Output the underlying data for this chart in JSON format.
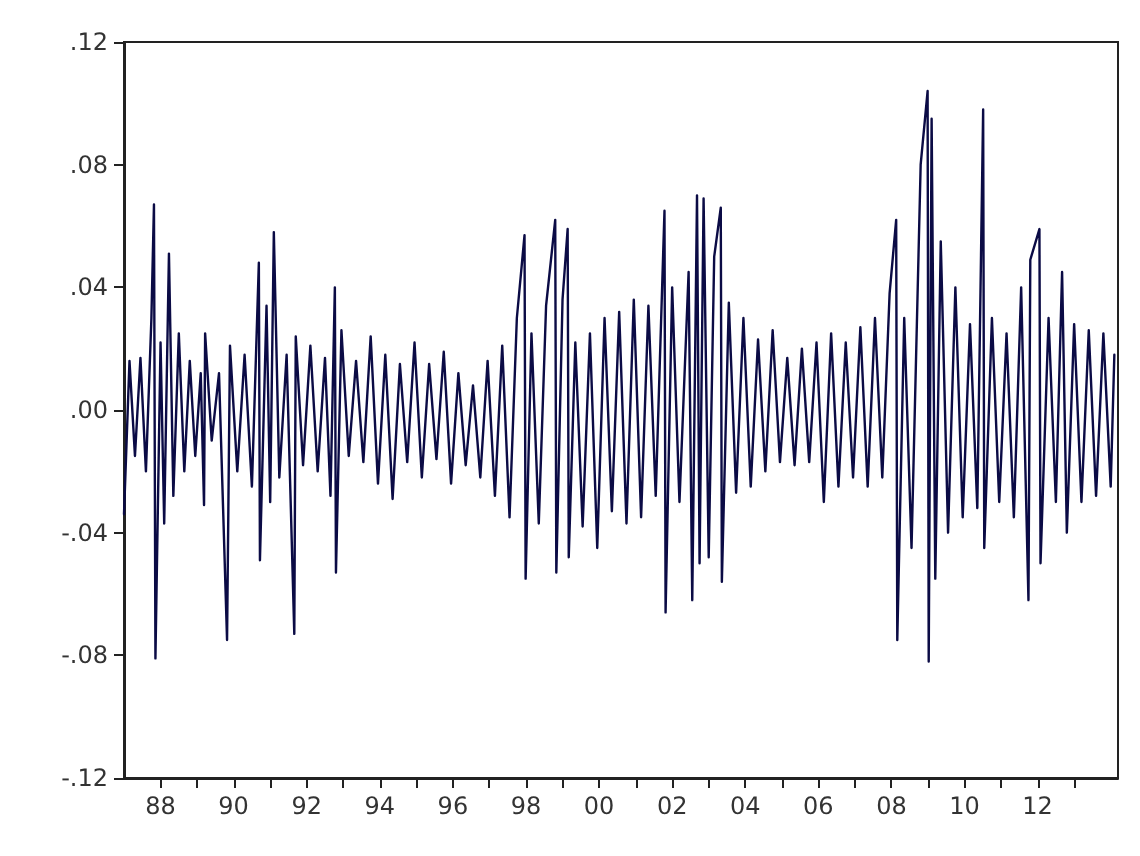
{
  "chart_data": {
    "type": "line",
    "color": "#0b0b45",
    "marker": "none",
    "line_style": "solid",
    "xlim": [
      1987,
      2014.2
    ],
    "xticks": [
      {
        "value": 1988,
        "label": "88"
      },
      {
        "value": 1989,
        "label": null
      },
      {
        "value": 1990,
        "label": "90"
      },
      {
        "value": 1991,
        "label": null
      },
      {
        "value": 1992,
        "label": "92"
      },
      {
        "value": 1993,
        "label": null
      },
      {
        "value": 1994,
        "label": "94"
      },
      {
        "value": 1995,
        "label": null
      },
      {
        "value": 1996,
        "label": "96"
      },
      {
        "value": 1997,
        "label": null
      },
      {
        "value": 1998,
        "label": "98"
      },
      {
        "value": 1999,
        "label": null
      },
      {
        "value": 2000,
        "label": "00"
      },
      {
        "value": 2001,
        "label": null
      },
      {
        "value": 2002,
        "label": "02"
      },
      {
        "value": 2003,
        "label": null
      },
      {
        "value": 2004,
        "label": "04"
      },
      {
        "value": 2005,
        "label": null
      },
      {
        "value": 2006,
        "label": "06"
      },
      {
        "value": 2007,
        "label": null
      },
      {
        "value": 2008,
        "label": "08"
      },
      {
        "value": 2009,
        "label": null
      },
      {
        "value": 2010,
        "label": "10"
      },
      {
        "value": 2011,
        "label": null
      },
      {
        "value": 2012,
        "label": "12"
      },
      {
        "value": 2013,
        "label": null
      }
    ],
    "ylim": [
      -0.12,
      0.12
    ],
    "yticks": [
      {
        "value": -0.12,
        "label": "-.12"
      },
      {
        "value": -0.08,
        "label": "-.08"
      },
      {
        "value": -0.04,
        "label": "-.04"
      },
      {
        "value": 0,
        "label": ".00"
      },
      {
        "value": 0.04,
        "label": ".04"
      },
      {
        "value": 0.08,
        "label": ".08"
      },
      {
        "value": 0.12,
        "label": ".12"
      }
    ],
    "x": [
      1987.0,
      1987.15,
      1987.3,
      1987.45,
      1987.6,
      1987.75,
      1987.82,
      1987.86,
      1988.0,
      1988.1,
      1988.23,
      1988.35,
      1988.5,
      1988.65,
      1988.8,
      1988.95,
      1989.1,
      1989.19,
      1989.22,
      1989.4,
      1989.6,
      1989.82,
      1989.9,
      1990.1,
      1990.3,
      1990.5,
      1990.69,
      1990.72,
      1990.9,
      1991.0,
      1991.1,
      1991.25,
      1991.45,
      1991.66,
      1991.7,
      1991.9,
      1992.1,
      1992.3,
      1992.5,
      1992.65,
      1992.77,
      1992.8,
      1992.95,
      1993.15,
      1993.35,
      1993.55,
      1993.75,
      1993.95,
      1994.15,
      1994.35,
      1994.55,
      1994.75,
      1994.95,
      1995.15,
      1995.35,
      1995.55,
      1995.75,
      1995.95,
      1996.15,
      1996.35,
      1996.55,
      1996.75,
      1996.95,
      1997.15,
      1997.35,
      1997.55,
      1997.75,
      1997.96,
      1997.99,
      1998.15,
      1998.35,
      1998.55,
      1998.8,
      1998.83,
      1999.0,
      1999.14,
      1999.17,
      1999.35,
      1999.55,
      1999.75,
      1999.95,
      2000.15,
      2000.35,
      2000.55,
      2000.75,
      2000.95,
      2001.15,
      2001.35,
      2001.55,
      2001.79,
      2001.82,
      2002.0,
      2002.2,
      2002.45,
      2002.55,
      2002.68,
      2002.75,
      2002.86,
      2003.0,
      2003.15,
      2003.33,
      2003.36,
      2003.55,
      2003.75,
      2003.95,
      2004.15,
      2004.35,
      2004.55,
      2004.75,
      2004.95,
      2005.15,
      2005.35,
      2005.55,
      2005.75,
      2005.95,
      2006.15,
      2006.35,
      2006.55,
      2006.75,
      2006.95,
      2007.15,
      2007.35,
      2007.55,
      2007.75,
      2007.95,
      2008.13,
      2008.16,
      2008.35,
      2008.55,
      2008.8,
      2008.99,
      2009.02,
      2009.1,
      2009.2,
      2009.35,
      2009.55,
      2009.75,
      2009.95,
      2010.15,
      2010.35,
      2010.51,
      2010.54,
      2010.75,
      2010.95,
      2011.15,
      2011.35,
      2011.55,
      2011.75,
      2011.8,
      2012.05,
      2012.08,
      2012.3,
      2012.5,
      2012.67,
      2012.8,
      2013.0,
      2013.2,
      2013.4,
      2013.6,
      2013.8,
      2014.0,
      2014.1
    ],
    "values": [
      -0.034,
      0.016,
      -0.015,
      0.017,
      -0.02,
      0.03,
      0.067,
      -0.081,
      0.022,
      -0.037,
      0.051,
      -0.028,
      0.025,
      -0.02,
      0.016,
      -0.015,
      0.012,
      -0.031,
      0.025,
      -0.01,
      0.012,
      -0.075,
      0.021,
      -0.02,
      0.018,
      -0.025,
      0.048,
      -0.049,
      0.034,
      -0.03,
      0.058,
      -0.022,
      0.018,
      -0.073,
      0.024,
      -0.018,
      0.021,
      -0.02,
      0.017,
      -0.028,
      0.04,
      -0.053,
      0.026,
      -0.015,
      0.016,
      -0.017,
      0.024,
      -0.024,
      0.018,
      -0.029,
      0.015,
      -0.017,
      0.022,
      -0.022,
      0.015,
      -0.016,
      0.019,
      -0.024,
      0.012,
      -0.018,
      0.008,
      -0.022,
      0.016,
      -0.028,
      0.021,
      -0.035,
      0.03,
      0.057,
      -0.055,
      0.025,
      -0.037,
      0.034,
      0.062,
      -0.053,
      0.036,
      0.059,
      -0.048,
      0.022,
      -0.038,
      0.025,
      -0.045,
      0.03,
      -0.033,
      0.032,
      -0.037,
      0.036,
      -0.035,
      0.034,
      -0.028,
      0.065,
      -0.066,
      0.04,
      -0.03,
      0.045,
      -0.062,
      0.07,
      -0.05,
      0.069,
      -0.048,
      0.05,
      0.066,
      -0.056,
      0.035,
      -0.027,
      0.03,
      -0.025,
      0.023,
      -0.02,
      0.026,
      -0.017,
      0.017,
      -0.018,
      0.02,
      -0.017,
      0.022,
      -0.03,
      0.025,
      -0.025,
      0.022,
      -0.022,
      0.027,
      -0.025,
      0.03,
      -0.022,
      0.038,
      0.062,
      -0.075,
      0.03,
      -0.045,
      0.08,
      0.104,
      -0.082,
      0.095,
      -0.055,
      0.055,
      -0.04,
      0.04,
      -0.035,
      0.028,
      -0.032,
      0.098,
      -0.045,
      0.03,
      -0.03,
      0.025,
      -0.035,
      0.04,
      -0.062,
      0.049,
      0.059,
      -0.05,
      0.03,
      -0.03,
      0.045,
      -0.04,
      0.028,
      -0.03,
      0.026,
      -0.028,
      0.025,
      -0.025,
      0.018
    ]
  }
}
